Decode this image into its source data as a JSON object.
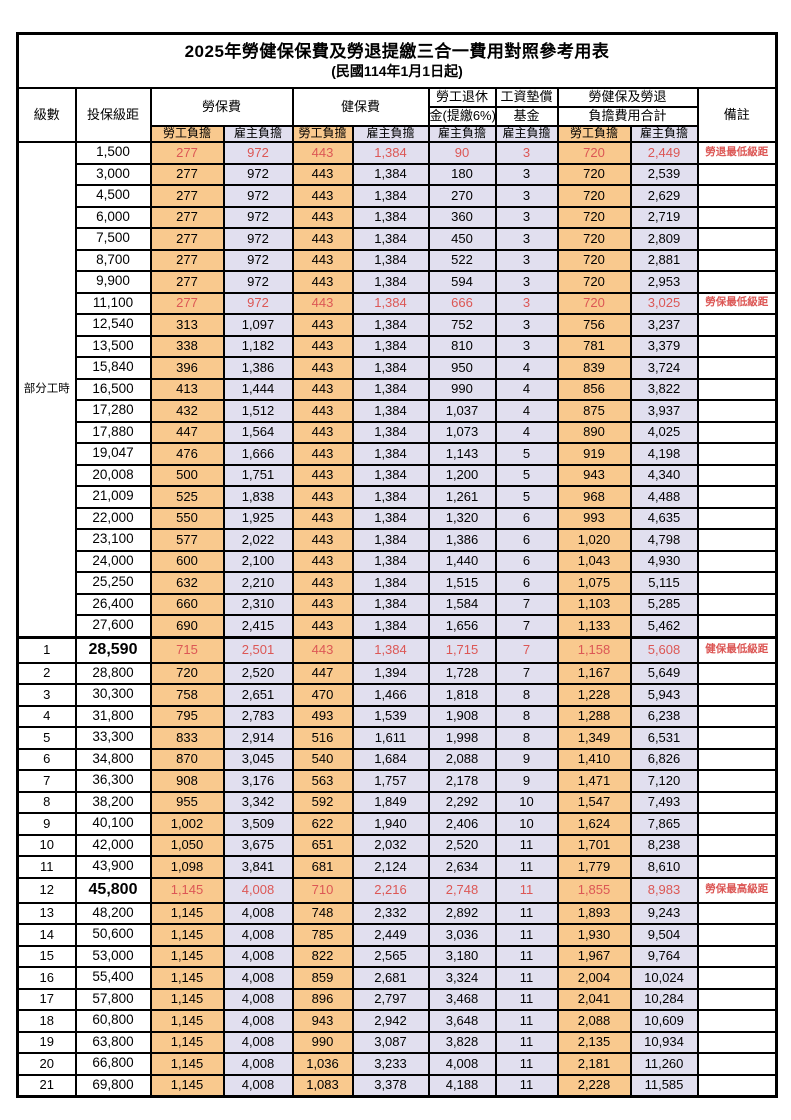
{
  "title": "2025年勞健保保費及勞退提繳三合一費用對照參考用表",
  "subtitle": "(民國114年1月1日起)",
  "colors": {
    "employee_bg": "#F9C98E",
    "employer_bg": "#E1DFEF",
    "highlight_value_red": "#DC5755",
    "remark_red": "#F3534F",
    "border": "#000000",
    "page_bg": "#FFFFFF"
  },
  "header": {
    "level": "級數",
    "bracket": "投保級距",
    "labor_insurance": "勞保費",
    "health_insurance": "健保費",
    "pension_line1": "勞工退休",
    "pension_line2": "金(提繳6%)",
    "wage_fund_line1": "工資墊償",
    "wage_fund_line2": "基金",
    "total_line1": "勞健保及勞退",
    "total_line2": "負擔費用合計",
    "remark": "備註",
    "employee_share": "勞工負擔",
    "employer_share": "雇主負擔"
  },
  "part_time_label": "部分工時",
  "part_time_rowspan": 23,
  "rows": [
    {
      "level": "",
      "bracket": "1,500",
      "li_emp": "277",
      "li_er": "972",
      "hi_emp": "443",
      "hi_er": "1,384",
      "pension": "90",
      "fund": "3",
      "tot_emp": "720",
      "tot_er": "2,449",
      "remark": "勞退最低級距",
      "hl": true
    },
    {
      "level": "",
      "bracket": "3,000",
      "li_emp": "277",
      "li_er": "972",
      "hi_emp": "443",
      "hi_er": "1,384",
      "pension": "180",
      "fund": "3",
      "tot_emp": "720",
      "tot_er": "2,539",
      "remark": ""
    },
    {
      "level": "",
      "bracket": "4,500",
      "li_emp": "277",
      "li_er": "972",
      "hi_emp": "443",
      "hi_er": "1,384",
      "pension": "270",
      "fund": "3",
      "tot_emp": "720",
      "tot_er": "2,629",
      "remark": ""
    },
    {
      "level": "",
      "bracket": "6,000",
      "li_emp": "277",
      "li_er": "972",
      "hi_emp": "443",
      "hi_er": "1,384",
      "pension": "360",
      "fund": "3",
      "tot_emp": "720",
      "tot_er": "2,719",
      "remark": ""
    },
    {
      "level": "",
      "bracket": "7,500",
      "li_emp": "277",
      "li_er": "972",
      "hi_emp": "443",
      "hi_er": "1,384",
      "pension": "450",
      "fund": "3",
      "tot_emp": "720",
      "tot_er": "2,809",
      "remark": ""
    },
    {
      "level": "",
      "bracket": "8,700",
      "li_emp": "277",
      "li_er": "972",
      "hi_emp": "443",
      "hi_er": "1,384",
      "pension": "522",
      "fund": "3",
      "tot_emp": "720",
      "tot_er": "2,881",
      "remark": ""
    },
    {
      "level": "",
      "bracket": "9,900",
      "li_emp": "277",
      "li_er": "972",
      "hi_emp": "443",
      "hi_er": "1,384",
      "pension": "594",
      "fund": "3",
      "tot_emp": "720",
      "tot_er": "2,953",
      "remark": ""
    },
    {
      "level": "",
      "bracket": "11,100",
      "li_emp": "277",
      "li_er": "972",
      "hi_emp": "443",
      "hi_er": "1,384",
      "pension": "666",
      "fund": "3",
      "tot_emp": "720",
      "tot_er": "3,025",
      "remark": "勞保最低級距",
      "hl": true
    },
    {
      "level": "",
      "bracket": "12,540",
      "li_emp": "313",
      "li_er": "1,097",
      "hi_emp": "443",
      "hi_er": "1,384",
      "pension": "752",
      "fund": "3",
      "tot_emp": "756",
      "tot_er": "3,237",
      "remark": ""
    },
    {
      "level": "",
      "bracket": "13,500",
      "li_emp": "338",
      "li_er": "1,182",
      "hi_emp": "443",
      "hi_er": "1,384",
      "pension": "810",
      "fund": "3",
      "tot_emp": "781",
      "tot_er": "3,379",
      "remark": ""
    },
    {
      "level": "",
      "bracket": "15,840",
      "li_emp": "396",
      "li_er": "1,386",
      "hi_emp": "443",
      "hi_er": "1,384",
      "pension": "950",
      "fund": "4",
      "tot_emp": "839",
      "tot_er": "3,724",
      "remark": ""
    },
    {
      "level": "",
      "bracket": "16,500",
      "li_emp": "413",
      "li_er": "1,444",
      "hi_emp": "443",
      "hi_er": "1,384",
      "pension": "990",
      "fund": "4",
      "tot_emp": "856",
      "tot_er": "3,822",
      "remark": ""
    },
    {
      "level": "",
      "bracket": "17,280",
      "li_emp": "432",
      "li_er": "1,512",
      "hi_emp": "443",
      "hi_er": "1,384",
      "pension": "1,037",
      "fund": "4",
      "tot_emp": "875",
      "tot_er": "3,937",
      "remark": ""
    },
    {
      "level": "",
      "bracket": "17,880",
      "li_emp": "447",
      "li_er": "1,564",
      "hi_emp": "443",
      "hi_er": "1,384",
      "pension": "1,073",
      "fund": "4",
      "tot_emp": "890",
      "tot_er": "4,025",
      "remark": ""
    },
    {
      "level": "",
      "bracket": "19,047",
      "li_emp": "476",
      "li_er": "1,666",
      "hi_emp": "443",
      "hi_er": "1,384",
      "pension": "1,143",
      "fund": "5",
      "tot_emp": "919",
      "tot_er": "4,198",
      "remark": ""
    },
    {
      "level": "",
      "bracket": "20,008",
      "li_emp": "500",
      "li_er": "1,751",
      "hi_emp": "443",
      "hi_er": "1,384",
      "pension": "1,200",
      "fund": "5",
      "tot_emp": "943",
      "tot_er": "4,340",
      "remark": ""
    },
    {
      "level": "",
      "bracket": "21,009",
      "li_emp": "525",
      "li_er": "1,838",
      "hi_emp": "443",
      "hi_er": "1,384",
      "pension": "1,261",
      "fund": "5",
      "tot_emp": "968",
      "tot_er": "4,488",
      "remark": ""
    },
    {
      "level": "",
      "bracket": "22,000",
      "li_emp": "550",
      "li_er": "1,925",
      "hi_emp": "443",
      "hi_er": "1,384",
      "pension": "1,320",
      "fund": "6",
      "tot_emp": "993",
      "tot_er": "4,635",
      "remark": ""
    },
    {
      "level": "",
      "bracket": "23,100",
      "li_emp": "577",
      "li_er": "2,022",
      "hi_emp": "443",
      "hi_er": "1,384",
      "pension": "1,386",
      "fund": "6",
      "tot_emp": "1,020",
      "tot_er": "4,798",
      "remark": ""
    },
    {
      "level": "",
      "bracket": "24,000",
      "li_emp": "600",
      "li_er": "2,100",
      "hi_emp": "443",
      "hi_er": "1,384",
      "pension": "1,440",
      "fund": "6",
      "tot_emp": "1,043",
      "tot_er": "4,930",
      "remark": ""
    },
    {
      "level": "",
      "bracket": "25,250",
      "li_emp": "632",
      "li_er": "2,210",
      "hi_emp": "443",
      "hi_er": "1,384",
      "pension": "1,515",
      "fund": "6",
      "tot_emp": "1,075",
      "tot_er": "5,115",
      "remark": ""
    },
    {
      "level": "",
      "bracket": "26,400",
      "li_emp": "660",
      "li_er": "2,310",
      "hi_emp": "443",
      "hi_er": "1,384",
      "pension": "1,584",
      "fund": "7",
      "tot_emp": "1,103",
      "tot_er": "5,285",
      "remark": ""
    },
    {
      "level": "",
      "bracket": "27,600",
      "li_emp": "690",
      "li_er": "2,415",
      "hi_emp": "443",
      "hi_er": "1,384",
      "pension": "1,656",
      "fund": "7",
      "tot_emp": "1,133",
      "tot_er": "5,462",
      "remark": ""
    },
    {
      "level": "1",
      "bracket": "28,590",
      "li_emp": "715",
      "li_er": "2,501",
      "hi_emp": "443",
      "hi_er": "1,384",
      "pension": "1,715",
      "fund": "7",
      "tot_emp": "1,158",
      "tot_er": "5,608",
      "remark": "健保最低級距",
      "hl": true,
      "em": true,
      "sep": true
    },
    {
      "level": "2",
      "bracket": "28,800",
      "li_emp": "720",
      "li_er": "2,520",
      "hi_emp": "447",
      "hi_er": "1,394",
      "pension": "1,728",
      "fund": "7",
      "tot_emp": "1,167",
      "tot_er": "5,649",
      "remark": ""
    },
    {
      "level": "3",
      "bracket": "30,300",
      "li_emp": "758",
      "li_er": "2,651",
      "hi_emp": "470",
      "hi_er": "1,466",
      "pension": "1,818",
      "fund": "8",
      "tot_emp": "1,228",
      "tot_er": "5,943",
      "remark": ""
    },
    {
      "level": "4",
      "bracket": "31,800",
      "li_emp": "795",
      "li_er": "2,783",
      "hi_emp": "493",
      "hi_er": "1,539",
      "pension": "1,908",
      "fund": "8",
      "tot_emp": "1,288",
      "tot_er": "6,238",
      "remark": ""
    },
    {
      "level": "5",
      "bracket": "33,300",
      "li_emp": "833",
      "li_er": "2,914",
      "hi_emp": "516",
      "hi_er": "1,611",
      "pension": "1,998",
      "fund": "8",
      "tot_emp": "1,349",
      "tot_er": "6,531",
      "remark": ""
    },
    {
      "level": "6",
      "bracket": "34,800",
      "li_emp": "870",
      "li_er": "3,045",
      "hi_emp": "540",
      "hi_er": "1,684",
      "pension": "2,088",
      "fund": "9",
      "tot_emp": "1,410",
      "tot_er": "6,826",
      "remark": ""
    },
    {
      "level": "7",
      "bracket": "36,300",
      "li_emp": "908",
      "li_er": "3,176",
      "hi_emp": "563",
      "hi_er": "1,757",
      "pension": "2,178",
      "fund": "9",
      "tot_emp": "1,471",
      "tot_er": "7,120",
      "remark": ""
    },
    {
      "level": "8",
      "bracket": "38,200",
      "li_emp": "955",
      "li_er": "3,342",
      "hi_emp": "592",
      "hi_er": "1,849",
      "pension": "2,292",
      "fund": "10",
      "tot_emp": "1,547",
      "tot_er": "7,493",
      "remark": ""
    },
    {
      "level": "9",
      "bracket": "40,100",
      "li_emp": "1,002",
      "li_er": "3,509",
      "hi_emp": "622",
      "hi_er": "1,940",
      "pension": "2,406",
      "fund": "10",
      "tot_emp": "1,624",
      "tot_er": "7,865",
      "remark": ""
    },
    {
      "level": "10",
      "bracket": "42,000",
      "li_emp": "1,050",
      "li_er": "3,675",
      "hi_emp": "651",
      "hi_er": "2,032",
      "pension": "2,520",
      "fund": "11",
      "tot_emp": "1,701",
      "tot_er": "8,238",
      "remark": ""
    },
    {
      "level": "11",
      "bracket": "43,900",
      "li_emp": "1,098",
      "li_er": "3,841",
      "hi_emp": "681",
      "hi_er": "2,124",
      "pension": "2,634",
      "fund": "11",
      "tot_emp": "1,779",
      "tot_er": "8,610",
      "remark": ""
    },
    {
      "level": "12",
      "bracket": "45,800",
      "li_emp": "1,145",
      "li_er": "4,008",
      "hi_emp": "710",
      "hi_er": "2,216",
      "pension": "2,748",
      "fund": "11",
      "tot_emp": "1,855",
      "tot_er": "8,983",
      "remark": "勞保最高級距",
      "hl": true,
      "em": true
    },
    {
      "level": "13",
      "bracket": "48,200",
      "li_emp": "1,145",
      "li_er": "4,008",
      "hi_emp": "748",
      "hi_er": "2,332",
      "pension": "2,892",
      "fund": "11",
      "tot_emp": "1,893",
      "tot_er": "9,243",
      "remark": ""
    },
    {
      "level": "14",
      "bracket": "50,600",
      "li_emp": "1,145",
      "li_er": "4,008",
      "hi_emp": "785",
      "hi_er": "2,449",
      "pension": "3,036",
      "fund": "11",
      "tot_emp": "1,930",
      "tot_er": "9,504",
      "remark": ""
    },
    {
      "level": "15",
      "bracket": "53,000",
      "li_emp": "1,145",
      "li_er": "4,008",
      "hi_emp": "822",
      "hi_er": "2,565",
      "pension": "3,180",
      "fund": "11",
      "tot_emp": "1,967",
      "tot_er": "9,764",
      "remark": ""
    },
    {
      "level": "16",
      "bracket": "55,400",
      "li_emp": "1,145",
      "li_er": "4,008",
      "hi_emp": "859",
      "hi_er": "2,681",
      "pension": "3,324",
      "fund": "11",
      "tot_emp": "2,004",
      "tot_er": "10,024",
      "remark": ""
    },
    {
      "level": "17",
      "bracket": "57,800",
      "li_emp": "1,145",
      "li_er": "4,008",
      "hi_emp": "896",
      "hi_er": "2,797",
      "pension": "3,468",
      "fund": "11",
      "tot_emp": "2,041",
      "tot_er": "10,284",
      "remark": ""
    },
    {
      "level": "18",
      "bracket": "60,800",
      "li_emp": "1,145",
      "li_er": "4,008",
      "hi_emp": "943",
      "hi_er": "2,942",
      "pension": "3,648",
      "fund": "11",
      "tot_emp": "2,088",
      "tot_er": "10,609",
      "remark": ""
    },
    {
      "level": "19",
      "bracket": "63,800",
      "li_emp": "1,145",
      "li_er": "4,008",
      "hi_emp": "990",
      "hi_er": "3,087",
      "pension": "3,828",
      "fund": "11",
      "tot_emp": "2,135",
      "tot_er": "10,934",
      "remark": ""
    },
    {
      "level": "20",
      "bracket": "66,800",
      "li_emp": "1,145",
      "li_er": "4,008",
      "hi_emp": "1,036",
      "hi_er": "3,233",
      "pension": "4,008",
      "fund": "11",
      "tot_emp": "2,181",
      "tot_er": "11,260",
      "remark": ""
    },
    {
      "level": "21",
      "bracket": "69,800",
      "li_emp": "1,145",
      "li_er": "4,008",
      "hi_emp": "1,083",
      "hi_er": "3,378",
      "pension": "4,188",
      "fund": "11",
      "tot_emp": "2,228",
      "tot_er": "11,585",
      "remark": ""
    }
  ]
}
